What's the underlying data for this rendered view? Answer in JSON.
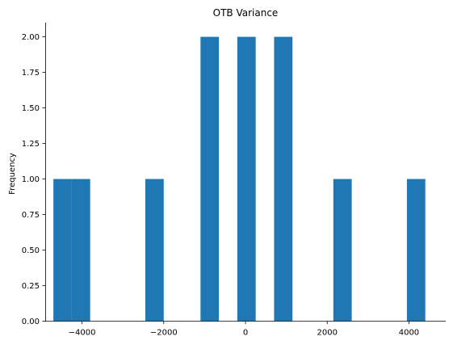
{
  "chart_data": {
    "type": "bar",
    "title": "OTB Variance",
    "xlabel": "",
    "ylabel": "Frequency",
    "xlim": [
      -4900,
      4900
    ],
    "ylim": [
      0,
      2.1
    ],
    "x_ticks": [
      -4000,
      -2000,
      0,
      2000,
      4000
    ],
    "x_tick_labels": [
      "−4000",
      "−2000",
      "0",
      "2000",
      "4000"
    ],
    "y_ticks": [
      0,
      0.25,
      0.5,
      0.75,
      1.0,
      1.25,
      1.5,
      1.75,
      2.0
    ],
    "y_tick_labels": [
      "0.00",
      "0.25",
      "0.50",
      "0.75",
      "1.00",
      "1.25",
      "1.50",
      "1.75",
      "2.00"
    ],
    "grid": false,
    "bar_color": "#1f77b4",
    "bins": [
      {
        "x0": -4700,
        "x1": -4250,
        "value": 1
      },
      {
        "x0": -4250,
        "x1": -3800,
        "value": 1
      },
      {
        "x0": -2450,
        "x1": -2000,
        "value": 1
      },
      {
        "x0": -1100,
        "x1": -650,
        "value": 2
      },
      {
        "x0": -200,
        "x1": 250,
        "value": 2
      },
      {
        "x0": 700,
        "x1": 1150,
        "value": 2
      },
      {
        "x0": 2150,
        "x1": 2600,
        "value": 1
      },
      {
        "x0": 3950,
        "x1": 4400,
        "value": 1
      }
    ]
  }
}
